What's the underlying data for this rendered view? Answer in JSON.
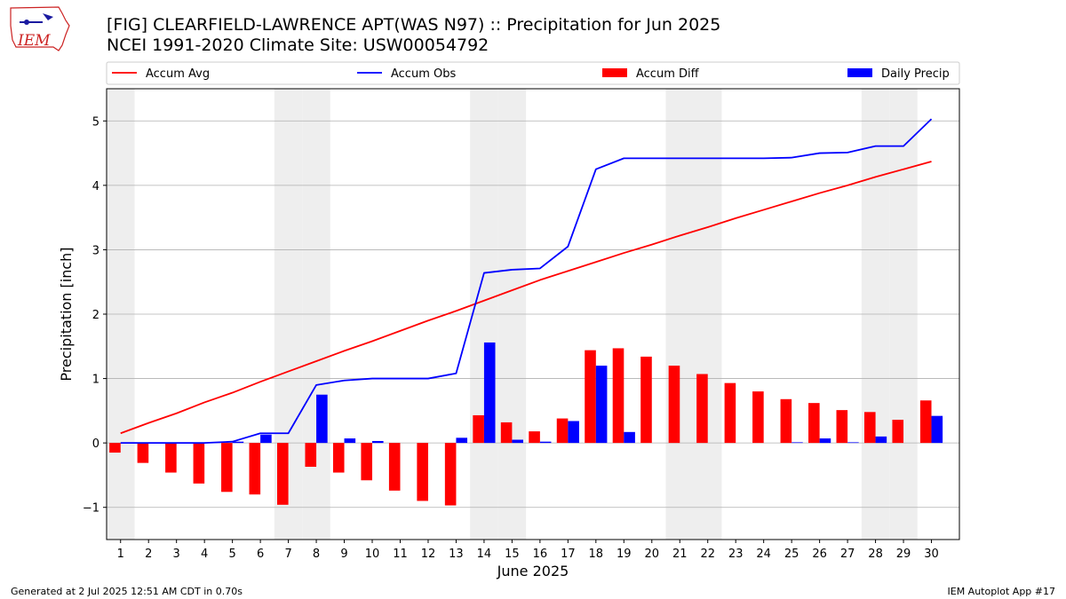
{
  "header": {
    "title": "[FIG] CLEARFIELD-LAWRENCE APT(WAS N97) :: Precipitation for Jun 2025",
    "subtitle": "NCEI 1991-2020 Climate Site: USW00054792",
    "logo_text": "IEM"
  },
  "footer": {
    "generated": "Generated at 2 Jul 2025 12:51 AM CDT in 0.70s",
    "app": "IEM Autoplot App #17"
  },
  "colors": {
    "avg": "#ff0000",
    "obs": "#0000ff",
    "diff": "#ff0000",
    "daily": "#0000ff",
    "weekend_shade": "#eeeeee",
    "grid": "#b0b0b0"
  },
  "chart_data": {
    "type": "bar",
    "xlabel": "June 2025",
    "ylabel": "Precipitation [inch]",
    "ylim": [
      -1.5,
      5.5
    ],
    "xlim": [
      0.5,
      31
    ],
    "grid": "horizontal",
    "legend_placement": "top (above plot)",
    "days": [
      1,
      2,
      3,
      4,
      5,
      6,
      7,
      8,
      9,
      10,
      11,
      12,
      13,
      14,
      15,
      16,
      17,
      18,
      19,
      20,
      21,
      22,
      23,
      24,
      25,
      26,
      27,
      28,
      29,
      30
    ],
    "yticks": [
      {
        "value": -1,
        "label": "−1"
      },
      {
        "value": 0,
        "label": "0"
      },
      {
        "value": 1,
        "label": "1"
      },
      {
        "value": 2,
        "label": "2"
      },
      {
        "value": 3,
        "label": "3"
      },
      {
        "value": 4,
        "label": "4"
      },
      {
        "value": 5,
        "label": "5"
      }
    ],
    "weekend_days": [
      1,
      7,
      8,
      14,
      15,
      21,
      22,
      28,
      29
    ],
    "series": [
      {
        "name": "Accum Avg",
        "kind": "line",
        "values": [
          0.15,
          0.31,
          0.46,
          0.63,
          0.78,
          0.95,
          1.11,
          1.27,
          1.43,
          1.58,
          1.74,
          1.9,
          2.05,
          2.21,
          2.37,
          2.53,
          2.67,
          2.81,
          2.95,
          3.08,
          3.22,
          3.35,
          3.49,
          3.62,
          3.75,
          3.88,
          4.0,
          4.13,
          4.25,
          4.37
        ]
      },
      {
        "name": "Accum Obs",
        "kind": "line",
        "values": [
          0,
          0,
          0,
          0,
          0.02,
          0.15,
          0.15,
          0.9,
          0.97,
          1.0,
          1.0,
          1.0,
          1.08,
          2.64,
          2.69,
          2.71,
          3.05,
          4.25,
          4.42,
          4.42,
          4.42,
          4.42,
          4.42,
          4.42,
          4.43,
          4.5,
          4.51,
          4.61,
          4.61,
          5.03
        ]
      },
      {
        "name": "Accum Diff",
        "kind": "bar",
        "values": [
          -0.15,
          -0.31,
          -0.46,
          -0.63,
          -0.76,
          -0.8,
          -0.96,
          -0.37,
          -0.46,
          -0.58,
          -0.74,
          -0.9,
          -0.97,
          0.43,
          0.32,
          0.18,
          0.38,
          1.44,
          1.47,
          1.34,
          1.2,
          1.07,
          0.93,
          0.8,
          0.68,
          0.62,
          0.51,
          0.48,
          0.36,
          0.66
        ]
      },
      {
        "name": "Daily Precip",
        "kind": "bar",
        "values": [
          0,
          0,
          0,
          0,
          0.02,
          0.13,
          0,
          0.75,
          0.07,
          0.03,
          0,
          0,
          0.08,
          1.56,
          0.05,
          0.02,
          0.34,
          1.2,
          0.17,
          0,
          0,
          0,
          0,
          0,
          0.01,
          0.07,
          0.01,
          0.1,
          0,
          0.42
        ]
      }
    ]
  }
}
